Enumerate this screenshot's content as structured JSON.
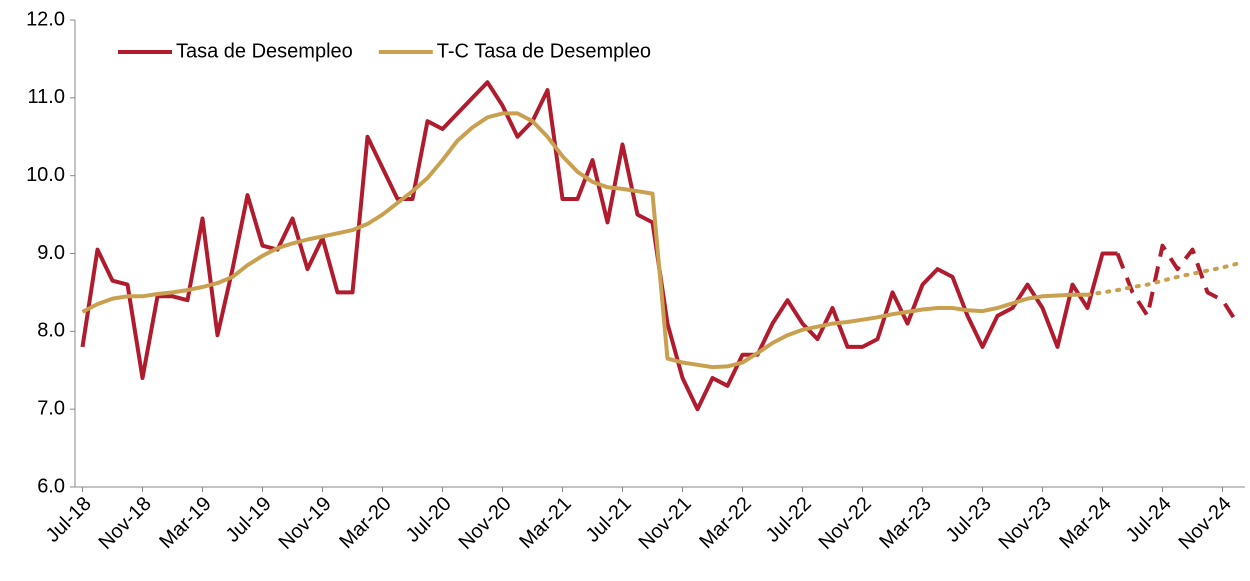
{
  "chart_data": {
    "type": "line",
    "categories": [
      "Jul-18",
      null,
      null,
      null,
      "Nov-18",
      null,
      null,
      null,
      "Mar-19",
      null,
      null,
      null,
      "Jul-19",
      null,
      null,
      null,
      "Nov-19",
      null,
      null,
      null,
      "Mar-20",
      null,
      null,
      null,
      "Jul-20",
      null,
      null,
      null,
      "Nov-20",
      null,
      null,
      null,
      "Mar-21",
      null,
      null,
      null,
      "Jul-21",
      null,
      null,
      null,
      "Nov-21",
      null,
      null,
      null,
      "Mar-22",
      null,
      null,
      null,
      "Jul-22",
      null,
      null,
      null,
      "Nov-22",
      null,
      null,
      null,
      "Mar-23",
      null,
      null,
      null,
      "Jul-23",
      null,
      null,
      null,
      "Nov-23",
      null,
      null,
      null,
      "Mar-24",
      null,
      null,
      null,
      "Jul-24",
      null,
      null,
      null,
      "Nov-24",
      null
    ],
    "series": [
      {
        "name": "Tasa de Desempleo",
        "color": "#b01c2e",
        "style": "solid",
        "values": [
          7.8,
          9.05,
          8.65,
          8.6,
          7.4,
          8.45,
          8.45,
          8.4,
          9.45,
          7.95,
          8.8,
          9.75,
          9.1,
          9.05,
          9.45,
          8.8,
          9.2,
          8.5,
          8.5,
          10.5,
          10.1,
          9.7,
          9.7,
          10.7,
          10.6,
          10.8,
          11.0,
          11.2,
          10.9,
          10.5,
          10.7,
          11.1,
          9.7,
          9.7,
          10.2,
          9.4,
          10.4,
          9.5,
          9.4,
          8.1,
          7.4,
          7.0,
          7.4,
          7.3,
          7.7,
          7.7,
          8.1,
          8.4,
          8.1,
          7.9,
          8.3,
          7.8,
          7.8,
          7.9,
          8.5,
          8.1,
          8.6,
          8.8,
          8.7,
          8.2,
          7.8,
          8.2,
          8.3,
          8.6,
          8.3,
          7.8,
          8.6,
          8.3,
          9.0,
          9.0,
          null,
          null,
          null,
          null,
          null,
          null,
          null,
          null
        ]
      },
      {
        "name": "T-C Tasa de Desempleo",
        "color": "#c9a04f",
        "style": "solid",
        "values": [
          8.25,
          8.35,
          8.42,
          8.45,
          8.45,
          8.48,
          8.5,
          8.53,
          8.57,
          8.62,
          8.7,
          8.85,
          8.97,
          9.07,
          9.13,
          9.18,
          9.22,
          9.26,
          9.3,
          9.38,
          9.5,
          9.65,
          9.8,
          9.97,
          10.2,
          10.45,
          10.62,
          10.75,
          10.8,
          10.8,
          10.7,
          10.5,
          10.25,
          10.05,
          9.92,
          9.85,
          9.83,
          9.8,
          9.77,
          7.65,
          7.6,
          7.57,
          7.54,
          7.55,
          7.6,
          7.72,
          7.85,
          7.95,
          8.02,
          8.06,
          8.1,
          8.12,
          8.15,
          8.18,
          8.22,
          8.25,
          8.28,
          8.3,
          8.3,
          8.27,
          8.26,
          8.3,
          8.36,
          8.42,
          8.45,
          8.46,
          8.47,
          8.47,
          null,
          null,
          null,
          null,
          null,
          null,
          null,
          null,
          null,
          null
        ]
      },
      {
        "color": "#b01c2e",
        "style": "dashed",
        "values": [
          null,
          null,
          null,
          null,
          null,
          null,
          null,
          null,
          null,
          null,
          null,
          null,
          null,
          null,
          null,
          null,
          null,
          null,
          null,
          null,
          null,
          null,
          null,
          null,
          null,
          null,
          null,
          null,
          null,
          null,
          null,
          null,
          null,
          null,
          null,
          null,
          null,
          null,
          null,
          null,
          null,
          null,
          null,
          null,
          null,
          null,
          null,
          null,
          null,
          null,
          null,
          null,
          null,
          null,
          null,
          null,
          null,
          null,
          null,
          null,
          null,
          null,
          null,
          null,
          null,
          null,
          null,
          null,
          null,
          9.0,
          8.5,
          8.2,
          9.1,
          8.8,
          9.05,
          8.5,
          8.4,
          8.1
        ]
      },
      {
        "color": "#c9a04f",
        "style": "dotted",
        "values": [
          null,
          null,
          null,
          null,
          null,
          null,
          null,
          null,
          null,
          null,
          null,
          null,
          null,
          null,
          null,
          null,
          null,
          null,
          null,
          null,
          null,
          null,
          null,
          null,
          null,
          null,
          null,
          null,
          null,
          null,
          null,
          null,
          null,
          null,
          null,
          null,
          null,
          null,
          null,
          null,
          null,
          null,
          null,
          null,
          null,
          null,
          null,
          null,
          null,
          null,
          null,
          null,
          null,
          null,
          null,
          null,
          null,
          null,
          null,
          null,
          null,
          null,
          null,
          null,
          null,
          null,
          null,
          8.47,
          8.5,
          8.53,
          8.57,
          8.6,
          8.65,
          8.7,
          8.74,
          8.78,
          8.82,
          8.87
        ]
      }
    ],
    "ylim": [
      6,
      12
    ],
    "yticks": [
      {
        "value": 6,
        "label": "6.0"
      },
      {
        "value": 7,
        "label": "7.0"
      },
      {
        "value": 8,
        "label": "8.0"
      },
      {
        "value": 9,
        "label": "9.0"
      },
      {
        "value": 10,
        "label": "10.0"
      },
      {
        "value": 11,
        "label": "11.0"
      },
      {
        "value": 12,
        "label": "12.0"
      }
    ],
    "grid": false,
    "legend": "top-left"
  }
}
